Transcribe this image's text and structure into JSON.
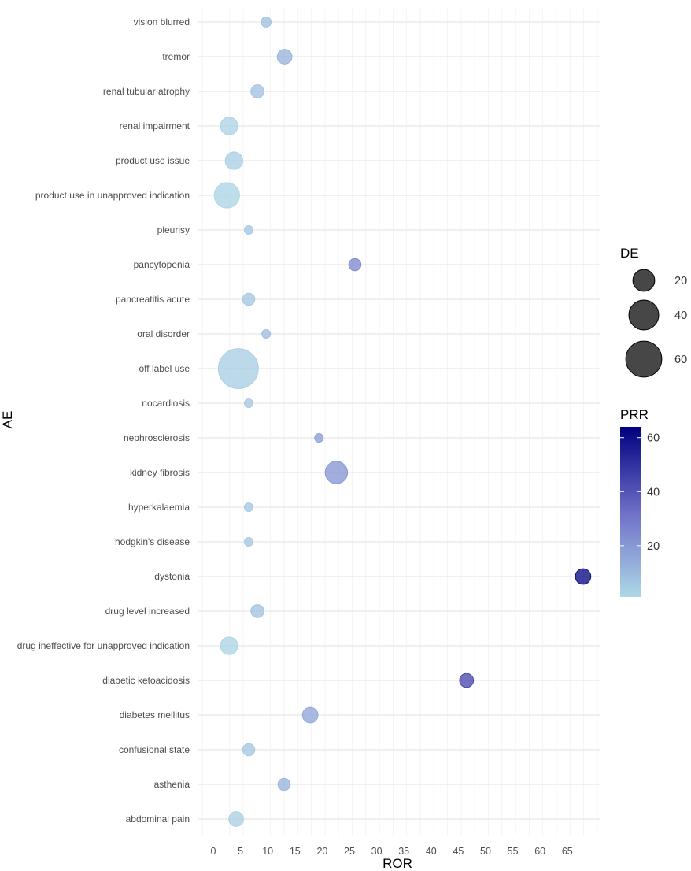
{
  "chart_data": {
    "type": "scatter",
    "subtype": "bubble",
    "xlabel": "ROR",
    "ylabel": "AE",
    "xlim": [
      -2,
      72
    ],
    "xticks": [
      0,
      5,
      10,
      15,
      20,
      25,
      30,
      35,
      40,
      45,
      50,
      55,
      60,
      65
    ],
    "grid": true,
    "categories": [
      "vision blurred",
      "tremor",
      "renal tubular atrophy",
      "renal impairment",
      "product use issue",
      "product use in unapproved indication",
      "pleurisy",
      "pancytopenia",
      "pancreatitis acute",
      "oral disorder",
      "off label use",
      "nocardiosis",
      "nephrosclerosis",
      "kidney fibrosis",
      "hyperkalaemia",
      "hodgkin's disease",
      "dystonia",
      "drug level increased",
      "drug ineffective for unapproved indication",
      "diabetic ketoacidosis",
      "diabetes mellitus",
      "confusional state",
      "asthenia",
      "abdominal pain"
    ],
    "points": [
      {
        "ae": "vision blurred",
        "ror": 9.7,
        "de": 3,
        "prr": 9
      },
      {
        "ae": "tremor",
        "ror": 13.1,
        "de": 8,
        "prr": 13
      },
      {
        "ae": "renal tubular atrophy",
        "ror": 8.1,
        "de": 6,
        "prr": 8
      },
      {
        "ae": "renal impairment",
        "ror": 2.9,
        "de": 12,
        "prr": 3
      },
      {
        "ae": "product use issue",
        "ror": 3.8,
        "de": 12,
        "prr": 4
      },
      {
        "ae": "product use in unapproved indication",
        "ror": 2.5,
        "de": 28,
        "prr": 2.5
      },
      {
        "ae": "pleurisy",
        "ror": 6.5,
        "de": 2,
        "prr": 6.5
      },
      {
        "ae": "pancytopenia",
        "ror": 26,
        "de": 5,
        "prr": 26
      },
      {
        "ae": "pancreatitis acute",
        "ror": 6.5,
        "de": 5,
        "prr": 6.5
      },
      {
        "ae": "oral disorder",
        "ror": 9.7,
        "de": 2,
        "prr": 9.7
      },
      {
        "ae": "off label use",
        "ror": 4.6,
        "de": 75,
        "prr": 4.6
      },
      {
        "ae": "nocardiosis",
        "ror": 6.5,
        "de": 2,
        "prr": 6.5
      },
      {
        "ae": "nephrosclerosis",
        "ror": 19.4,
        "de": 2,
        "prr": 19
      },
      {
        "ae": "kidney fibrosis",
        "ror": 22.6,
        "de": 21,
        "prr": 22
      },
      {
        "ae": "hyperkalaemia",
        "ror": 6.5,
        "de": 2,
        "prr": 6.5
      },
      {
        "ae": "hodgkin's disease",
        "ror": 6.5,
        "de": 2,
        "prr": 6.5
      },
      {
        "ae": "dystonia",
        "ror": 67.9,
        "de": 9,
        "prr": 64
      },
      {
        "ae": "drug level increased",
        "ror": 8.1,
        "de": 6,
        "prr": 8
      },
      {
        "ae": "drug ineffective for unapproved indication",
        "ror": 2.9,
        "de": 12,
        "prr": 3
      },
      {
        "ae": "diabetic ketoacidosis",
        "ror": 46.5,
        "de": 7,
        "prr": 45
      },
      {
        "ae": "diabetes mellitus",
        "ror": 17.8,
        "de": 9,
        "prr": 17
      },
      {
        "ae": "confusional state",
        "ror": 6.5,
        "de": 5,
        "prr": 6.5
      },
      {
        "ae": "asthenia",
        "ror": 13,
        "de": 5,
        "prr": 13
      },
      {
        "ae": "abdominal pain",
        "ror": 4.2,
        "de": 8,
        "prr": 4
      }
    ],
    "size_legend": {
      "title": "DE",
      "values": [
        20,
        40,
        60
      ]
    },
    "color_legend": {
      "title": "PRR",
      "range": [
        1,
        64
      ],
      "ticks": [
        20,
        40,
        60
      ],
      "low_color": "#add8e6",
      "mid_color": "#6e6ec8",
      "high_color": "#000080"
    }
  }
}
